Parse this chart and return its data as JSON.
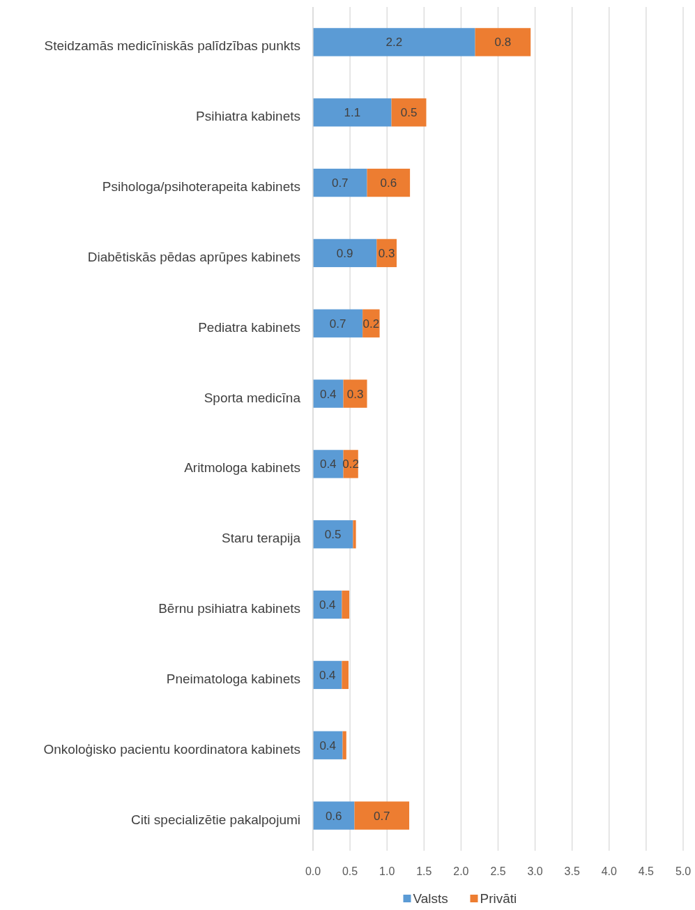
{
  "chart_data": {
    "type": "bar",
    "orientation": "horizontal",
    "stacked": true,
    "categories": [
      "Steidzamās medicīniskās palīdzības punkts",
      "Psihiatra kabinets",
      "Psihologa/psihoterapeita kabinets",
      "Diabētiskās pēdas aprūpes kabinets",
      "Pediatra kabinets",
      "Sporta medicīna",
      "Aritmologa kabinets",
      "Staru terapija",
      "Bērnu psihiatra kabinets",
      "Pneimatologa kabinets",
      "Onkoloģisko pacientu koordinatora kabinets",
      "Citi specializētie pakalpojumi"
    ],
    "series": [
      {
        "name": "Valsts",
        "color": "#5b9bd5",
        "values": [
          2.19,
          1.06,
          0.73,
          0.86,
          0.67,
          0.41,
          0.41,
          0.54,
          0.39,
          0.39,
          0.4,
          0.56
        ],
        "value_labels": [
          "2.2",
          "1.1",
          "0.7",
          "0.9",
          "0.7",
          "0.4",
          "0.4",
          "0.5",
          "0.4",
          "0.4",
          "0.4",
          "0.6"
        ]
      },
      {
        "name": "Privāti",
        "color": "#ed7d31",
        "values": [
          0.75,
          0.47,
          0.58,
          0.27,
          0.23,
          0.32,
          0.2,
          0.04,
          0.1,
          0.09,
          0.05,
          0.74
        ],
        "value_labels": [
          "0.8",
          "0.5",
          "0.6",
          "0.3",
          "0.2",
          "0.3",
          "0.2",
          null,
          null,
          null,
          null,
          "0.7"
        ]
      }
    ],
    "xlim": [
      0,
      5
    ],
    "xticks": [
      {
        "value": 0,
        "label": "0.0"
      },
      {
        "value": 0.5,
        "label": "0.5"
      },
      {
        "value": 1,
        "label": "1.0"
      },
      {
        "value": 1.5,
        "label": "1.5"
      },
      {
        "value": 2,
        "label": "2.0"
      },
      {
        "value": 2.5,
        "label": "2.5"
      },
      {
        "value": 3,
        "label": "3.0"
      },
      {
        "value": 3.5,
        "label": "3.5"
      },
      {
        "value": 4,
        "label": "4.0"
      },
      {
        "value": 4.5,
        "label": "4.5"
      },
      {
        "value": 5,
        "label": "5.0"
      }
    ],
    "grid": "x",
    "legend": "bottom"
  }
}
